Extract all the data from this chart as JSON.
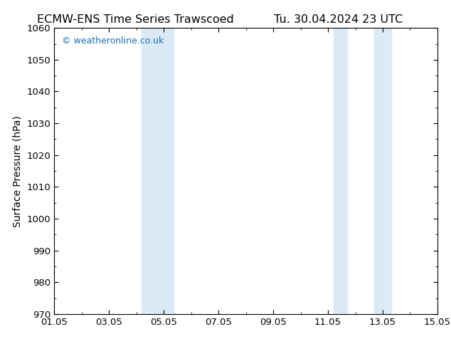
{
  "title_left": "ECMW-ENS Time Series Trawscoed",
  "title_right": "Tu. 30.04.2024 23 UTC",
  "ylabel": "Surface Pressure (hPa)",
  "ylim": [
    970,
    1060
  ],
  "yticks": [
    970,
    980,
    990,
    1000,
    1010,
    1020,
    1030,
    1040,
    1050,
    1060
  ],
  "xlim_start": 0.0,
  "xlim_end": 14.0,
  "xtick_positions": [
    0,
    2,
    4,
    6,
    8,
    10,
    12,
    14
  ],
  "xtick_labels": [
    "01.05",
    "03.05",
    "05.05",
    "07.05",
    "09.05",
    "11.05",
    "13.05",
    "15.05"
  ],
  "shade_regions": [
    {
      "xmin": 3.2,
      "xmax": 3.85,
      "color": "#daeaf7"
    },
    {
      "xmin": 3.85,
      "xmax": 4.35,
      "color": "#daeaf7"
    },
    {
      "xmin": 10.2,
      "xmax": 10.7,
      "color": "#daeaf7"
    },
    {
      "xmin": 11.7,
      "xmax": 12.3,
      "color": "#daeaf7"
    }
  ],
  "watermark": "© weatheronline.co.uk",
  "watermark_color": "#1a6db5",
  "background_color": "#ffffff",
  "plot_bg_color": "#ffffff",
  "title_fontsize": 11.5,
  "axis_label_fontsize": 10,
  "tick_fontsize": 9.5
}
